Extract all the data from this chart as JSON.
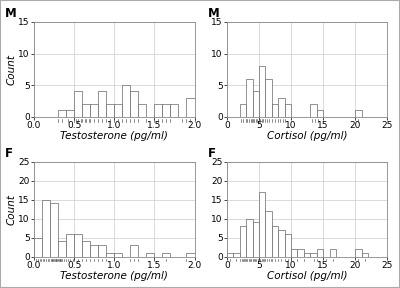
{
  "panels": [
    {
      "label": "M",
      "xlabel": "Testosterone (pg/ml)",
      "xlim": [
        0.0,
        2.0
      ],
      "ylim": [
        0,
        15
      ],
      "yticks": [
        0,
        5,
        10,
        15
      ],
      "xticks": [
        0.0,
        0.5,
        1.0,
        1.5,
        2.0
      ],
      "bin_edges": [
        0.0,
        0.1,
        0.2,
        0.3,
        0.4,
        0.5,
        0.6,
        0.7,
        0.8,
        0.9,
        1.0,
        1.1,
        1.2,
        1.3,
        1.4,
        1.5,
        1.6,
        1.7,
        1.8,
        1.9,
        2.0
      ],
      "counts": [
        0,
        0,
        0,
        1,
        1,
        4,
        2,
        2,
        4,
        2,
        2,
        5,
        4,
        2,
        0,
        2,
        2,
        2,
        0,
        3
      ],
      "rug_positions": [
        0.3,
        0.35,
        0.42,
        0.5,
        0.52,
        0.55,
        0.58,
        0.6,
        0.63,
        0.65,
        0.68,
        0.7,
        0.75,
        0.8,
        0.85,
        0.9,
        0.95,
        1.0,
        1.05,
        1.1,
        1.15,
        1.2,
        1.25,
        1.3,
        1.4,
        1.5,
        1.55,
        1.6,
        1.65,
        1.7,
        1.85,
        1.9,
        1.95,
        2.0
      ]
    },
    {
      "label": "M",
      "xlabel": "Cortisol (pg/ml)",
      "xlim": [
        0,
        25
      ],
      "ylim": [
        0,
        15
      ],
      "yticks": [
        0,
        5,
        10,
        15
      ],
      "xticks": [
        0,
        5,
        10,
        15,
        20,
        25
      ],
      "bin_edges": [
        0,
        1,
        2,
        3,
        4,
        5,
        6,
        7,
        8,
        9,
        10,
        11,
        12,
        13,
        14,
        15,
        16,
        17,
        18,
        19,
        20,
        21,
        22,
        23,
        24,
        25
      ],
      "counts": [
        0,
        0,
        2,
        6,
        4,
        8,
        6,
        2,
        3,
        2,
        0,
        0,
        0,
        2,
        1,
        0,
        0,
        0,
        0,
        0,
        1,
        0,
        0,
        0,
        0
      ],
      "rug_positions": [
        2.2,
        2.5,
        3.0,
        3.2,
        3.5,
        3.7,
        3.9,
        4.1,
        4.3,
        4.5,
        4.7,
        5.0,
        5.2,
        5.5,
        5.7,
        6.0,
        6.2,
        6.5,
        7.0,
        7.5,
        8.0,
        8.3,
        8.7,
        9.0,
        13.2,
        13.7,
        14.2,
        20.5
      ]
    },
    {
      "label": "F",
      "xlabel": "Testosterone (pg/ml)",
      "xlim": [
        0.0,
        2.0
      ],
      "ylim": [
        0,
        25
      ],
      "yticks": [
        0,
        5,
        10,
        15,
        20,
        25
      ],
      "xticks": [
        0.0,
        0.5,
        1.0,
        1.5,
        2.0
      ],
      "bin_edges": [
        0.0,
        0.1,
        0.2,
        0.3,
        0.4,
        0.5,
        0.6,
        0.7,
        0.8,
        0.9,
        1.0,
        1.1,
        1.2,
        1.3,
        1.4,
        1.5,
        1.6,
        1.7,
        1.8,
        1.9,
        2.0
      ],
      "counts": [
        5,
        15,
        14,
        4,
        6,
        6,
        4,
        3,
        3,
        1,
        1,
        0,
        3,
        0,
        1,
        0,
        1,
        0,
        0,
        1
      ],
      "rug_positions": [
        0.02,
        0.05,
        0.07,
        0.09,
        0.11,
        0.13,
        0.15,
        0.17,
        0.19,
        0.21,
        0.22,
        0.23,
        0.24,
        0.25,
        0.26,
        0.27,
        0.28,
        0.29,
        0.3,
        0.31,
        0.32,
        0.33,
        0.34,
        0.35,
        0.37,
        0.4,
        0.42,
        0.45,
        0.48,
        0.5,
        0.55,
        0.6,
        0.65,
        0.7,
        0.75,
        0.8,
        0.85,
        0.9,
        1.0,
        1.2,
        1.25,
        1.3,
        1.5,
        1.65,
        1.9
      ]
    },
    {
      "label": "F",
      "xlabel": "Cortisol (pg/ml)",
      "xlim": [
        0,
        25
      ],
      "ylim": [
        0,
        25
      ],
      "yticks": [
        0,
        5,
        10,
        15,
        20,
        25
      ],
      "xticks": [
        0,
        5,
        10,
        15,
        20,
        25
      ],
      "bin_edges": [
        0,
        1,
        2,
        3,
        4,
        5,
        6,
        7,
        8,
        9,
        10,
        11,
        12,
        13,
        14,
        15,
        16,
        17,
        18,
        19,
        20,
        21,
        22,
        23,
        24,
        25
      ],
      "counts": [
        1,
        1,
        8,
        10,
        9,
        17,
        12,
        8,
        7,
        6,
        2,
        2,
        1,
        1,
        2,
        0,
        2,
        0,
        0,
        0,
        2,
        1,
        0,
        0,
        0
      ],
      "rug_positions": [
        0.5,
        1.5,
        2.0,
        2.3,
        2.5,
        2.7,
        2.9,
        3.0,
        3.2,
        3.4,
        3.6,
        3.8,
        4.0,
        4.2,
        4.4,
        4.6,
        4.8,
        5.0,
        5.2,
        5.4,
        5.6,
        5.8,
        6.0,
        6.2,
        6.5,
        6.8,
        7.0,
        7.5,
        8.0,
        8.5,
        9.0,
        9.5,
        10.0,
        11.0,
        12.0,
        13.5,
        14.0,
        15.5,
        16.5,
        20.5,
        21.5
      ]
    }
  ],
  "bar_color": "#ffffff",
  "bar_edgecolor": "#666666",
  "grid_color": "#cccccc",
  "bg_color": "#ffffff",
  "fig_bg_color": "#ffffff",
  "outer_border_color": "#aaaaaa",
  "ylabel": "Count",
  "label_fontsize": 7.5,
  "tick_fontsize": 6.5,
  "panel_label_fontsize": 8.5,
  "rug_color": "#333333",
  "rug_height": 0.025
}
